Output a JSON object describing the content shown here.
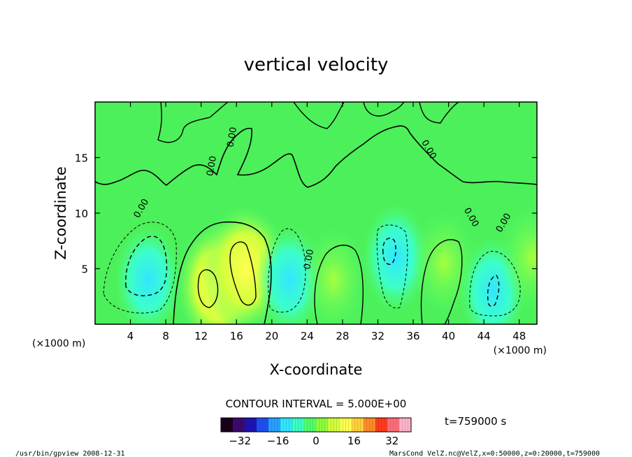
{
  "chart_data": {
    "type": "heatmap",
    "title": "vertical velocity",
    "xlabel": "X-coordinate",
    "ylabel": "Z-coordinate",
    "x_unit_left": "(×1000 m)",
    "x_unit_right": "(×1000 m)",
    "xlim": [
      0,
      50
    ],
    "ylim": [
      0,
      20
    ],
    "x_ticks": [
      4,
      8,
      12,
      16,
      20,
      24,
      28,
      32,
      36,
      40,
      44,
      48
    ],
    "y_ticks": [
      5,
      10,
      15
    ],
    "contour_label": "0.00",
    "contour_interval_text": "CONTOUR INTERVAL = 5.000E+00",
    "time_text": "t=759000 s",
    "colorbar": {
      "min": -40,
      "max": 40,
      "ticks": [
        -32,
        -16,
        0,
        16,
        32
      ],
      "colors": [
        "#1a001a",
        "#3c0a6e",
        "#1e14b4",
        "#1e50f0",
        "#28a0ff",
        "#32e6ff",
        "#3cffc8",
        "#50ff6e",
        "#8cff3c",
        "#d2ff3c",
        "#ffff50",
        "#ffd23c",
        "#ff8c28",
        "#ff3c1e",
        "#ff6e78",
        "#ffb4c8"
      ]
    },
    "cells": [
      {
        "x": 6,
        "z": 4,
        "value": -9
      },
      {
        "x": 14,
        "z": 3.5,
        "value": 18
      },
      {
        "x": 17,
        "z": 5,
        "value": 14
      },
      {
        "x": 22,
        "z": 4,
        "value": -5
      },
      {
        "x": 27,
        "z": 4,
        "value": 6
      },
      {
        "x": 34,
        "z": 6,
        "value": -7
      },
      {
        "x": 39.5,
        "z": 5.5,
        "value": 6
      },
      {
        "x": 45,
        "z": 3,
        "value": -8
      },
      {
        "x": 49.5,
        "z": 6,
        "value": 4
      }
    ]
  },
  "footer": {
    "left": "/usr/bin/gpview   2008-12-31",
    "right": "MarsCond_VelZ.nc@VelZ,x=0:50000,z=0:20000,t=759000"
  }
}
